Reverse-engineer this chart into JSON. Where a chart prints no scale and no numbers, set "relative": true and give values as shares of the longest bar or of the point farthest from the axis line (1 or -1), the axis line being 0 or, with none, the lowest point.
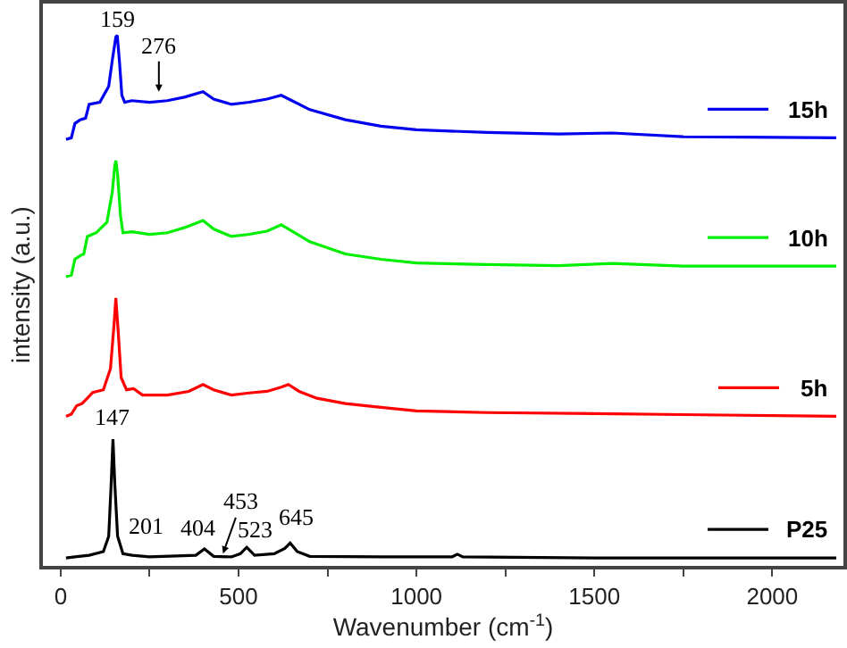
{
  "chart_data": {
    "type": "line",
    "relative": true,
    "xlabel": "Wavenumber (cm$^{-1}$)",
    "ylabel": "intensity (a.u.)",
    "xlim": [
      -50,
      2200
    ],
    "xticks": [
      0,
      {
        "value": 250,
        "label": null
      },
      500,
      {
        "value": 750,
        "label": null
      },
      1000,
      {
        "value": 1250,
        "label": null
      },
      1500,
      {
        "value": 1750,
        "label": null
      },
      2000
    ],
    "grid": false,
    "legend": "right",
    "marker": "none",
    "line_style": "solid",
    "series": [
      {
        "name": "P25",
        "color": "#000000",
        "x": [
          15,
          40,
          80,
          120,
          135,
          142,
          147,
          152,
          160,
          175,
          201,
          250,
          380,
          404,
          430,
          480,
          505,
          523,
          545,
          600,
          630,
          645,
          665,
          700,
          900,
          1100,
          1115,
          1130,
          1500,
          2180
        ],
        "values": [
          0.015,
          0.017,
          0.02,
          0.027,
          0.056,
          0.156,
          0.239,
          0.156,
          0.056,
          0.023,
          0.02,
          0.017,
          0.02,
          0.032,
          0.018,
          0.017,
          0.023,
          0.035,
          0.02,
          0.023,
          0.033,
          0.043,
          0.027,
          0.018,
          0.017,
          0.017,
          0.022,
          0.017,
          0.015,
          0.015
        ]
      },
      {
        "name": "5h",
        "color": "#ff0000",
        "x": [
          15,
          30,
          45,
          60,
          75,
          90,
          120,
          140,
          150,
          155,
          162,
          170,
          185,
          205,
          230,
          300,
          360,
          400,
          430,
          480,
          530,
          580,
          620,
          640,
          670,
          720,
          800,
          900,
          1000,
          1200,
          1500,
          2180
        ],
        "values": [
          0.282,
          0.286,
          0.302,
          0.306,
          0.316,
          0.327,
          0.332,
          0.372,
          0.455,
          0.505,
          0.439,
          0.355,
          0.332,
          0.334,
          0.322,
          0.322,
          0.329,
          0.342,
          0.332,
          0.322,
          0.326,
          0.329,
          0.337,
          0.342,
          0.329,
          0.316,
          0.306,
          0.299,
          0.292,
          0.289,
          0.287,
          0.282
        ]
      },
      {
        "name": "10h",
        "color": "#00ee00",
        "x": [
          15,
          30,
          40,
          55,
          65,
          75,
          100,
          130,
          145,
          152,
          155,
          160,
          168,
          175,
          200,
          250,
          300,
          350,
          400,
          430,
          480,
          530,
          580,
          620,
          650,
          700,
          800,
          900,
          1000,
          1200,
          1400,
          1550,
          1750,
          2180
        ],
        "values": [
          0.545,
          0.548,
          0.578,
          0.585,
          0.588,
          0.621,
          0.628,
          0.648,
          0.704,
          0.754,
          0.764,
          0.738,
          0.661,
          0.628,
          0.63,
          0.625,
          0.628,
          0.638,
          0.651,
          0.635,
          0.621,
          0.625,
          0.631,
          0.643,
          0.631,
          0.611,
          0.588,
          0.578,
          0.571,
          0.568,
          0.566,
          0.57,
          0.565,
          0.565
        ]
      },
      {
        "name": "15h",
        "color": "#0000ee",
        "x": [
          15,
          30,
          40,
          55,
          70,
          80,
          110,
          135,
          145,
          155,
          159,
          165,
          172,
          180,
          200,
          250,
          300,
          350,
          400,
          430,
          480,
          530,
          580,
          620,
          650,
          700,
          800,
          900,
          1000,
          1200,
          1400,
          1550,
          1750,
          2180
        ],
        "values": [
          0.804,
          0.807,
          0.834,
          0.841,
          0.844,
          0.87,
          0.874,
          0.904,
          0.953,
          0.997,
          1.0,
          0.953,
          0.887,
          0.874,
          0.877,
          0.874,
          0.877,
          0.884,
          0.894,
          0.88,
          0.87,
          0.874,
          0.88,
          0.887,
          0.877,
          0.86,
          0.841,
          0.829,
          0.822,
          0.817,
          0.814,
          0.816,
          0.809,
          0.807
        ]
      }
    ],
    "annotations": [
      {
        "text": "159",
        "x": 159,
        "y": 1.0
      },
      {
        "text": "276",
        "x": 276,
        "y": 0.887
      },
      {
        "text": "147",
        "x": 147,
        "y": 0.239
      },
      {
        "text": "201",
        "x": 201,
        "y": 0.02
      },
      {
        "text": "404",
        "x": 404,
        "y": 0.032
      },
      {
        "text": "453",
        "x": 453,
        "y": 0.017
      },
      {
        "text": "523",
        "x": 523,
        "y": 0.035
      },
      {
        "text": "645",
        "x": 645,
        "y": 0.043
      }
    ]
  }
}
